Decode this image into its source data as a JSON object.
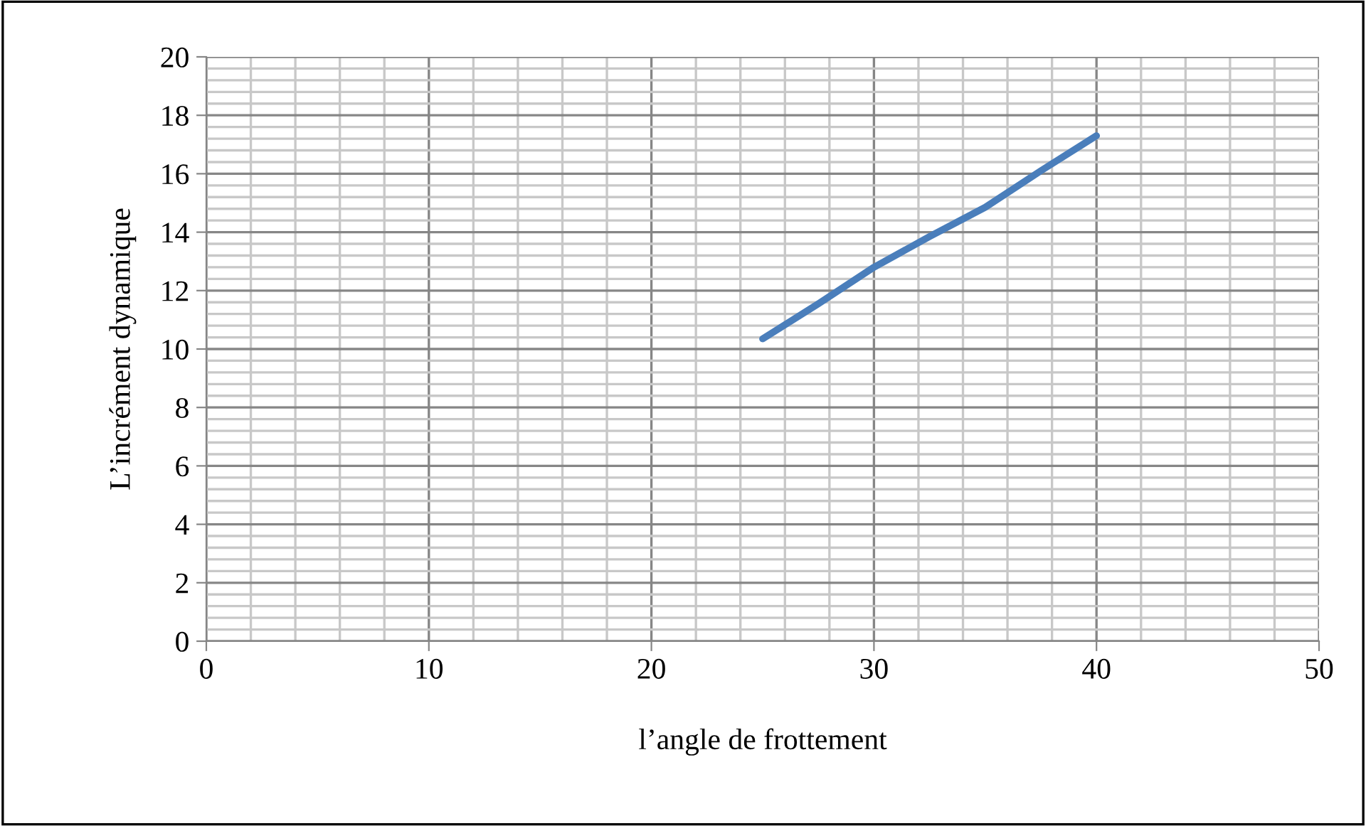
{
  "chart_data": {
    "type": "line",
    "xlabel": "l’angle de frottement",
    "ylabel": "L’incrément dynamique",
    "x": [
      25,
      27.5,
      30,
      32.5,
      35,
      37.5,
      40
    ],
    "series": [
      {
        "color": "#4a7ebb",
        "values": [
          10.35,
          11.55,
          12.8,
          13.85,
          14.85,
          16.1,
          17.3
        ]
      }
    ],
    "xlim": [
      0,
      50
    ],
    "xticks": [
      0,
      10,
      20,
      30,
      40,
      50
    ],
    "ylim": [
      0,
      20
    ],
    "yticks": [
      0,
      2,
      4,
      6,
      8,
      10,
      12,
      14,
      16,
      18,
      20
    ],
    "grid": true,
    "legend": false,
    "marker": "none",
    "line_style": "solid"
  }
}
